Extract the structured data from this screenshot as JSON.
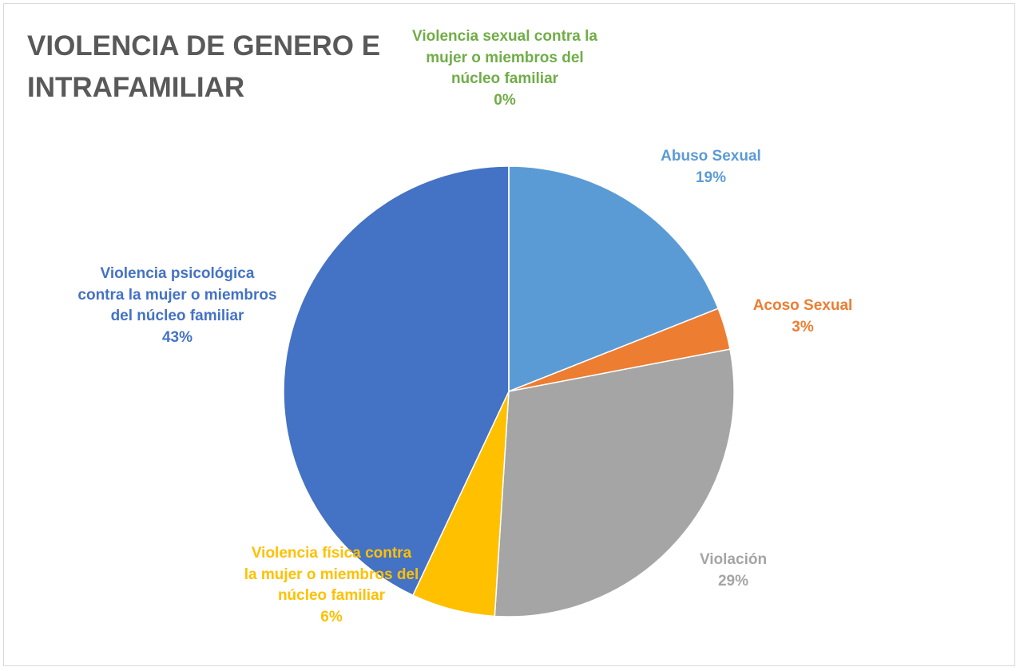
{
  "chart_data": {
    "type": "pie",
    "title": "VIOLENCIA DE GENERO E INTRAFAMILIAR",
    "categories": [
      "Abuso Sexual",
      "Acoso Sexual",
      "Violación",
      "Violencia física contra la mujer o miembros del núcleo familiar",
      "Violencia psicológica contra la mujer o miembros del núcleo familiar",
      "Violencia sexual contra la mujer o miembros del núcleo familiar"
    ],
    "values": [
      19,
      3,
      29,
      6,
      43,
      0
    ],
    "value_labels": [
      "19%",
      "3%",
      "29%",
      "6%",
      "43%",
      "0%"
    ],
    "colors": [
      "#5b9bd5",
      "#ed7d31",
      "#a5a5a5",
      "#ffc000",
      "#4472c4",
      "#70ad47"
    ]
  }
}
